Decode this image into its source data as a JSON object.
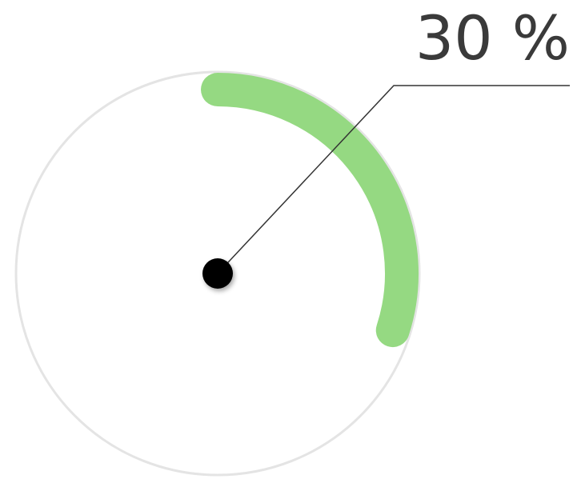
{
  "chart_data": {
    "type": "gauge",
    "value": 30,
    "max": 100,
    "unit": "%",
    "label": "30 %",
    "colors": {
      "arc": "#95d982",
      "track": "#e4e4e4",
      "center": "#000000",
      "leader": "#333333",
      "text": "#3a3a3a"
    }
  }
}
